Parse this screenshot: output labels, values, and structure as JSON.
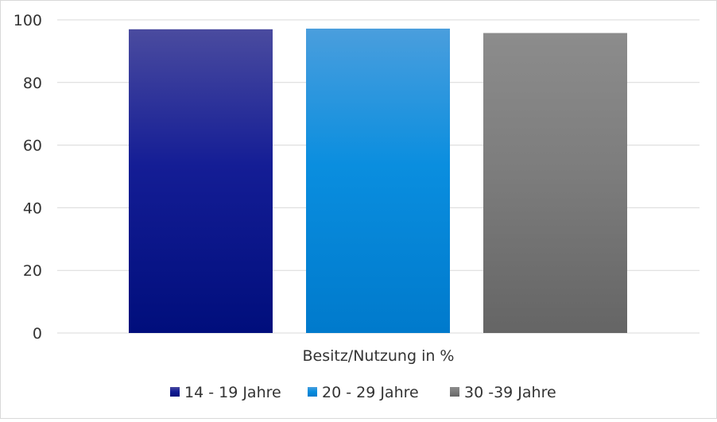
{
  "chart_data": {
    "type": "bar",
    "categories": [
      "Besitz/Nutzung in %"
    ],
    "series": [
      {
        "name": "14 - 19 Jahre",
        "values": [
          97
        ],
        "color": "#10198f"
      },
      {
        "name": "20 - 29  Jahre",
        "values": [
          97.2
        ],
        "color": "#0a8bd8"
      },
      {
        "name": "30 -39 Jahre",
        "values": [
          95.8
        ],
        "color": "#7a7a7a"
      }
    ],
    "title": "",
    "xlabel": "",
    "ylabel": "",
    "ylim": [
      0,
      100
    ],
    "yticks": [
      0,
      20,
      40,
      60,
      80,
      100
    ],
    "grid": true,
    "legend_position": "bottom"
  }
}
